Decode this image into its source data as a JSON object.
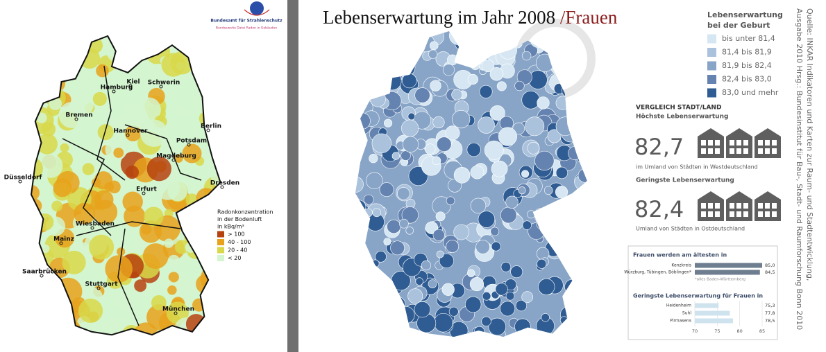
{
  "left_map": {
    "agency": "Bundesamt für Strahlenschutz",
    "agency_sub": "Bundesweite Datei Radon in Gebäuden",
    "cities": [
      "Kiel",
      "Hamburg",
      "Schwerin",
      "Bremen",
      "Berlin",
      "Hannover",
      "Potsdam",
      "Magdeburg",
      "Düsseldorf",
      "Erfurt",
      "Dresden",
      "Wiesbaden",
      "Mainz",
      "Saarbrücken",
      "Stuttgart",
      "München"
    ],
    "legend_title": [
      "Radonkonzentration",
      "in der Bodenluft",
      "in kBq/m³"
    ],
    "legend_items": [
      {
        "label": "> 100",
        "color": "#b6420f"
      },
      {
        "label": "40 - 100",
        "color": "#e8a21c"
      },
      {
        "label": "20 - 40",
        "color": "#d8d84a"
      },
      {
        "label": "< 20",
        "color": "#d3f5cf"
      }
    ]
  },
  "right_map": {
    "title": "Lebenserwartung im Jahr 2008",
    "title_accent": "/Frauen",
    "legend_title": [
      "Lebenserwartung",
      "bei der Geburt"
    ],
    "legend_items": [
      {
        "label": "bis unter 81,4",
        "color": "#d6e7f3"
      },
      {
        "label": "81,4 bis 81,9",
        "color": "#aac2dc"
      },
      {
        "label": "81,9 bis 82,4",
        "color": "#88a5c8"
      },
      {
        "label": "82,4 bis 83,0",
        "color": "#6583b0"
      },
      {
        "label": "83,0 und mehr",
        "color": "#2f5c92"
      }
    ],
    "comparison_title": "VERGLEICH STADT/LAND",
    "highest_label": "Höchste Lebenserwartung",
    "highest_value": "82,7",
    "highest_note": "im Umland von Städten in Westdeutschland",
    "lowest_label": "Geringste Lebenserwartung",
    "lowest_value": "82,4",
    "lowest_note": "Umland von Städten in Ostdeutschland",
    "source": [
      "Quelle: INKAR Indikatoren und Karten zur Raum- und Stadtentwicklung,",
      "Ausgabe 2010 Hrsg.: Bundesinstitut für Bau-, Stadt- und Raumforschung Bonn 2010"
    ]
  },
  "chart_data": [
    {
      "type": "bar",
      "orientation": "horizontal",
      "title": "Frauen werden am ältesten in",
      "categories": [
        "Kenzkreis",
        "Würzburg, Tübingen, Böblingen*"
      ],
      "values": [
        85.0,
        84.5
      ],
      "value_labels": [
        "85,0",
        "84,5"
      ],
      "color": "#6e7d8f",
      "note": "*alles Baden-Württemberg",
      "xlim": [
        70,
        85
      ]
    },
    {
      "type": "bar",
      "orientation": "horizontal",
      "title": "Geringste Lebenserwartung für Frauen in",
      "categories": [
        "Heidenheim",
        "Suhl",
        "Pirmasens"
      ],
      "values": [
        75.3,
        77.8,
        78.5
      ],
      "value_labels": [
        "75,3",
        "77,8",
        "78,5"
      ],
      "color": "#cfe3ef",
      "xlim": [
        70,
        85
      ],
      "xticks": [
        70,
        75,
        80,
        85
      ]
    }
  ]
}
